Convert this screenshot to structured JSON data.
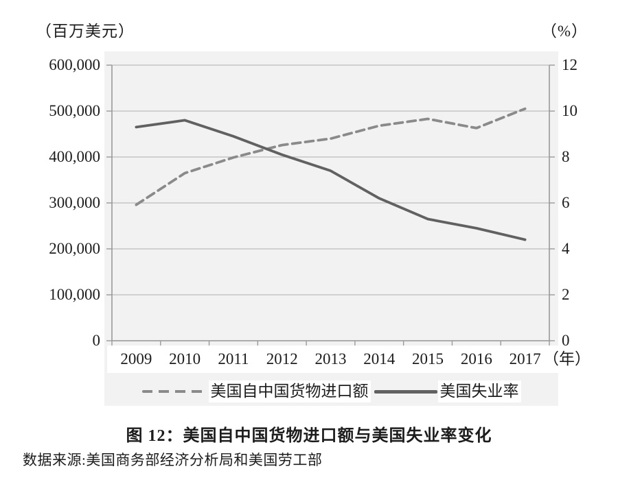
{
  "page": {
    "caption": "图 12：美国自中国货物进口额与美国失业率变化",
    "source": "数据来源:美国商务部经济分析局和美国劳工部"
  },
  "chart_data": {
    "type": "line",
    "title": "图 12：美国自中国货物进口额与美国失业率变化",
    "source": "数据来源:美国商务部经济分析局和美国劳工部",
    "categories": [
      "2009",
      "2010",
      "2011",
      "2012",
      "2013",
      "2014",
      "2015",
      "2016",
      "2017"
    ],
    "x_axis_suffix": "（年）",
    "grid": true,
    "legend_position": "bottom",
    "left_axis": {
      "unit": "（百万美元）",
      "min": 0,
      "max": 600000,
      "tick_labels": [
        "600,000",
        "500,000",
        "400,000",
        "300,000",
        "200,000",
        "100,000",
        "0"
      ],
      "tick_values": [
        600000,
        500000,
        400000,
        300000,
        200000,
        100000,
        0
      ]
    },
    "right_axis": {
      "unit": "（%）",
      "min": 0,
      "max": 12,
      "tick_labels": [
        "12",
        "10",
        "8",
        "6",
        "4",
        "2",
        "0"
      ],
      "tick_values": [
        12,
        10,
        8,
        6,
        4,
        2,
        0
      ]
    },
    "series": [
      {
        "name": "美国自中国货物进口额",
        "axis": "left",
        "style": "dashed",
        "color": "#8a8a8a",
        "values": [
          296000,
          365000,
          399000,
          426000,
          440000,
          468000,
          483000,
          463000,
          505000
        ]
      },
      {
        "name": "美国失业率",
        "axis": "right",
        "style": "solid",
        "color": "#616161",
        "values": [
          9.3,
          9.6,
          8.9,
          8.1,
          7.4,
          6.2,
          5.3,
          4.9,
          4.4
        ]
      }
    ],
    "colors": {
      "panel_background": "#f2f2f2",
      "gridline": "#bcbcbc",
      "axis": "#999999",
      "text": "#1c1c1c"
    }
  }
}
